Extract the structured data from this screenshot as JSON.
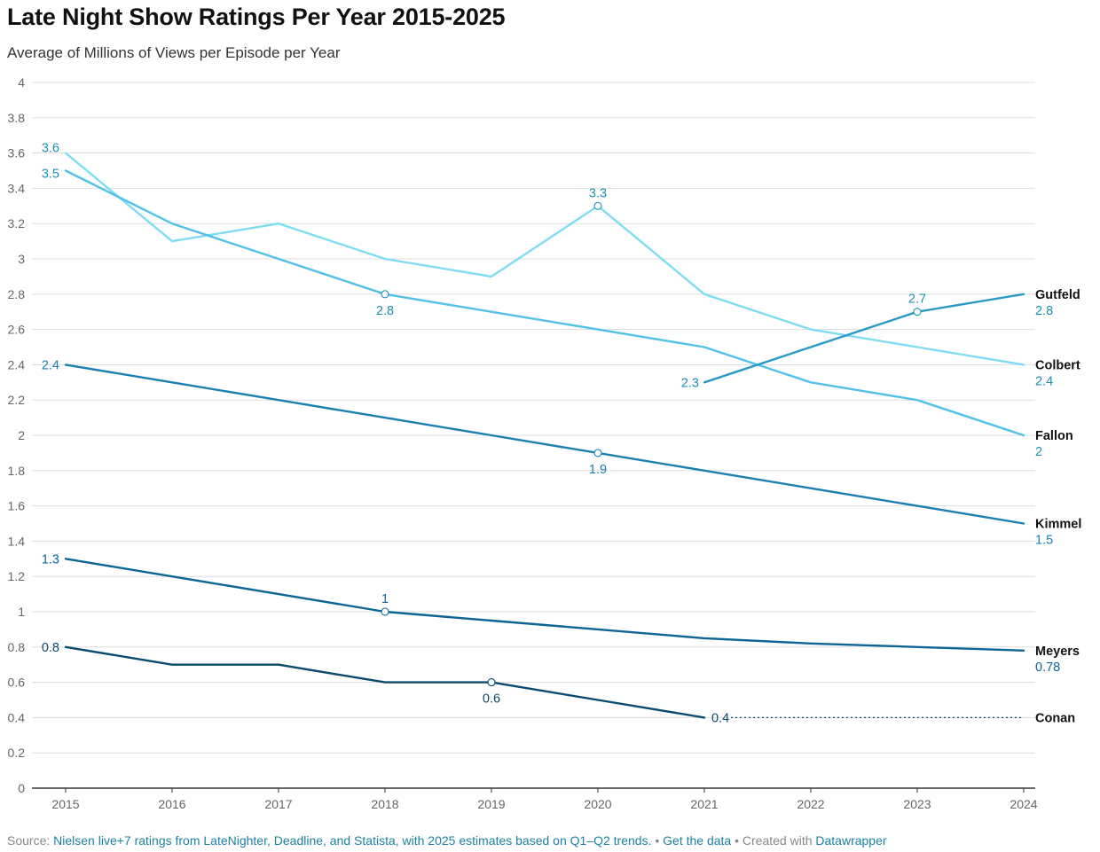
{
  "header": {
    "title": "Late Night Show Ratings Per Year 2015-2025",
    "subtitle": "Average of Millions of Views per Episode per Year"
  },
  "footer": {
    "source_prefix": "Source: ",
    "source_link": "Nielsen live+7 ratings from LateNighter, Deadline, and Statista, with 2025 estimates based on Q1–Q2 trends.",
    "separator1": " • ",
    "get_data": "Get the data",
    "separator2": " • Created with ",
    "tool": "Datawrapper"
  },
  "chart_data": {
    "type": "line",
    "title": "Late Night Show Ratings Per Year 2015-2025",
    "subtitle": "Average of Millions of Views per Episode per Year",
    "x": [
      2015,
      2016,
      2017,
      2018,
      2019,
      2020,
      2021,
      2022,
      2023,
      2024
    ],
    "ylim": [
      0,
      4
    ],
    "yticks": [
      0,
      0.2,
      0.4,
      0.6,
      0.8,
      1,
      1.2,
      1.4,
      1.6,
      1.8,
      2,
      2.2,
      2.4,
      2.6,
      2.8,
      3,
      3.2,
      3.4,
      3.6,
      3.8,
      4
    ],
    "grid": true,
    "legend": "end labels",
    "series": [
      {
        "name": "Colbert",
        "color": "#7fdcf1",
        "label_color": "#1e8fb0",
        "values": [
          3.6,
          3.1,
          3.2,
          3.0,
          2.9,
          3.3,
          2.8,
          2.6,
          2.5,
          2.4
        ],
        "labels": [
          {
            "index": 0,
            "text": "3.6",
            "pos": "left"
          },
          {
            "index": 5,
            "text": "3.3",
            "pos": "above",
            "marker": true
          }
        ],
        "end_value_text": "2.4"
      },
      {
        "name": "Fallon",
        "color": "#53c1e6",
        "label_color": "#1e8fb0",
        "values": [
          3.5,
          3.2,
          3.0,
          2.8,
          2.7,
          2.6,
          2.5,
          2.3,
          2.2,
          2.0
        ],
        "labels": [
          {
            "index": 0,
            "text": "3.5",
            "pos": "left"
          },
          {
            "index": 3,
            "text": "2.8",
            "pos": "below",
            "marker": true
          }
        ],
        "end_value_text": "2"
      },
      {
        "name": "Gutfeld",
        "color": "#2999c6",
        "label_color": "#1e8fb0",
        "values": [
          null,
          null,
          null,
          null,
          null,
          null,
          2.3,
          2.5,
          2.7,
          2.8
        ],
        "labels": [
          {
            "index": 6,
            "text": "2.3",
            "pos": "left"
          },
          {
            "index": 8,
            "text": "2.7",
            "pos": "above",
            "marker": true
          }
        ],
        "end_value_text": "2.8"
      },
      {
        "name": "Kimmel",
        "color": "#1a80b0",
        "label_color": "#1a80b0",
        "values": [
          2.4,
          2.3,
          2.2,
          2.1,
          2.0,
          1.9,
          1.8,
          1.7,
          1.6,
          1.5
        ],
        "labels": [
          {
            "index": 0,
            "text": "2.4",
            "pos": "left"
          },
          {
            "index": 5,
            "text": "1.9",
            "pos": "below",
            "marker": true
          }
        ],
        "end_value_text": "1.5"
      },
      {
        "name": "Meyers",
        "color": "#0d6593",
        "label_color": "#0d6593",
        "values": [
          1.3,
          1.2,
          1.1,
          1.0,
          0.95,
          0.9,
          0.85,
          0.82,
          0.8,
          0.78
        ],
        "labels": [
          {
            "index": 0,
            "text": "1.3",
            "pos": "left"
          },
          {
            "index": 3,
            "text": "1",
            "pos": "above",
            "marker": true
          }
        ],
        "end_value_text": "0.78"
      },
      {
        "name": "Conan",
        "color": "#0b4a6e",
        "label_color": "#0b4a6e",
        "values": [
          0.8,
          0.7,
          0.7,
          0.6,
          0.6,
          0.5,
          0.4,
          null,
          null,
          null
        ],
        "dotted_to_end": 0.4,
        "labels": [
          {
            "index": 0,
            "text": "0.8",
            "pos": "left"
          },
          {
            "index": 4,
            "text": "0.6",
            "pos": "below",
            "marker": true
          },
          {
            "index": 6,
            "text": "0.4",
            "pos": "right"
          }
        ],
        "end_value_text": ""
      }
    ]
  }
}
